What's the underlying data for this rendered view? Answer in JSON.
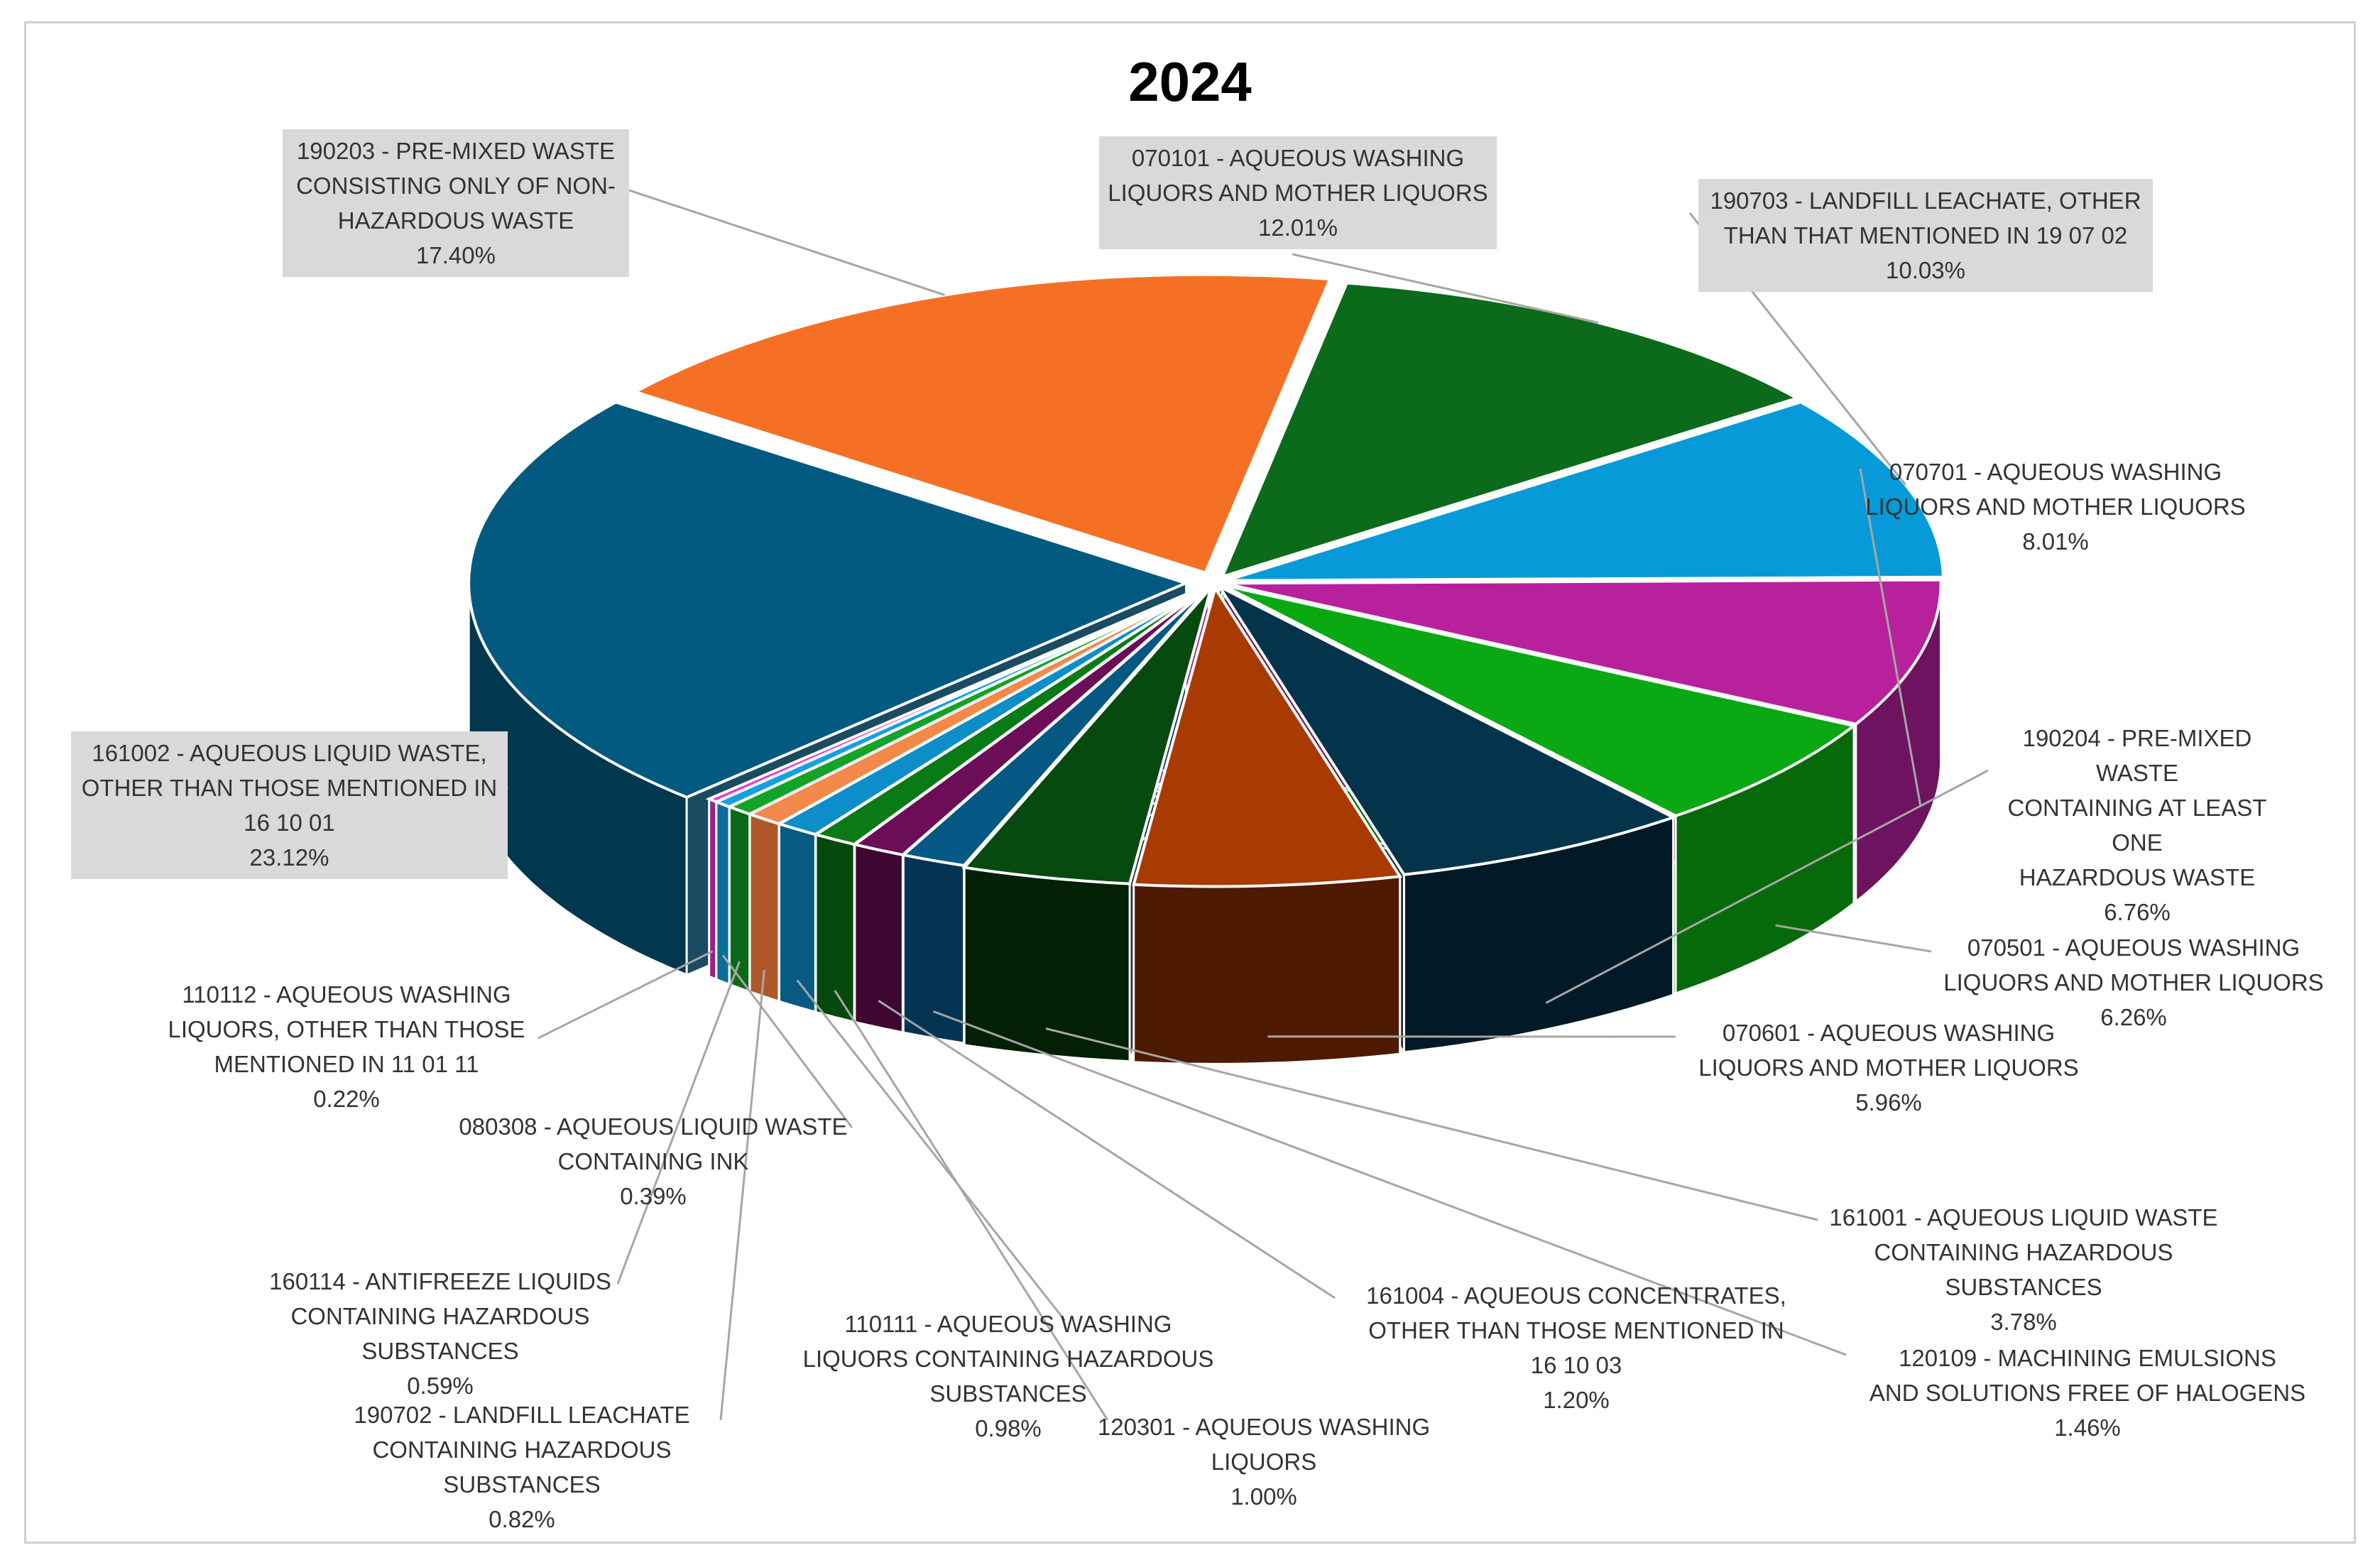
{
  "chart_data": {
    "type": "pie",
    "title": "2024",
    "variant": "3d-exploded",
    "slices": [
      {
        "label": "070101 - AQUEOUS WASHING LIQUORS AND MOTHER LIQUORS",
        "pct_text": "12.01%",
        "value": 12.01,
        "color": "#0b6b1a",
        "side_color": "#063a0e"
      },
      {
        "label": "190703 - LANDFILL LEACHATE, OTHER THAN THAT MENTIONED IN 19 07 02",
        "pct_text": "10.03%",
        "value": 10.03,
        "color": "#069bd8",
        "side_color": "#045f85"
      },
      {
        "label": "070701 - AQUEOUS WASHING LIQUORS AND MOTHER LIQUORS",
        "pct_text": "8.01%",
        "value": 8.01,
        "color": "#b8219c",
        "side_color": "#6e1360"
      },
      {
        "label": "070501 - AQUEOUS WASHING LIQUORS AND MOTHER LIQUORS",
        "pct_text": "6.26%",
        "value": 6.26,
        "color": "#0aa812",
        "side_color": "#066a0b"
      },
      {
        "label": "190204 - PRE-MIXED WASTE CONTAINING AT LEAST ONE HAZARDOUS WASTE",
        "pct_text": "6.76%",
        "value": 6.76,
        "color": "#04344b",
        "side_color": "#021a27"
      },
      {
        "label": "070601 - AQUEOUS WASHING LIQUORS AND MOTHER LIQUORS",
        "pct_text": "5.96%",
        "value": 5.96,
        "color": "#a83a02",
        "side_color": "#4e1a01"
      },
      {
        "label": "161001 - AQUEOUS LIQUID WASTE CONTAINING HAZARDOUS SUBSTANCES",
        "pct_text": "3.78%",
        "value": 3.78,
        "color": "#064a10",
        "side_color": "#031f06"
      },
      {
        "label": "120109 - MACHINING EMULSIONS AND SOLUTIONS FREE OF HALOGENS",
        "pct_text": "1.46%",
        "value": 1.46,
        "color": "#055883",
        "side_color": "#033552"
      },
      {
        "label": "161004 - AQUEOUS CONCENTRATES, OTHER THAN THOSE MENTIONED IN 16 10 03",
        "pct_text": "1.20%",
        "value": 1.2,
        "color": "#6b0d57",
        "side_color": "#3d0732"
      },
      {
        "label": "120301 - AQUEOUS WASHING LIQUORS",
        "pct_text": "1.00%",
        "value": 1.0,
        "color": "#0a7a17",
        "side_color": "#054a0c"
      },
      {
        "label": "110111 - AQUEOUS WASHING LIQUORS CONTAINING HAZARDOUS SUBSTANCES",
        "pct_text": "0.98%",
        "value": 0.98,
        "color": "#0d8ec9",
        "side_color": "#075a82"
      },
      {
        "label": "190702 - LANDFILL LEACHATE CONTAINING HAZARDOUS SUBSTANCES",
        "pct_text": "0.82%",
        "value": 0.82,
        "color": "#f2884a",
        "side_color": "#b0582a"
      },
      {
        "label": "160114 - ANTIFREEZE LIQUIDS CONTAINING HAZARDOUS SUBSTANCES",
        "pct_text": "0.59%",
        "value": 0.59,
        "color": "#12a328",
        "side_color": "#0a6a18"
      },
      {
        "label": "080308 - AQUEOUS LIQUID WASTE CONTAINING INK",
        "pct_text": "0.39%",
        "value": 0.39,
        "color": "#16a0e0",
        "side_color": "#0c6c99"
      },
      {
        "label": "110112 - AQUEOUS WASHING LIQUORS, OTHER THAN THOSE MENTIONED IN 11 01 11",
        "pct_text": "0.22%",
        "value": 0.22,
        "color": "#e23ac8",
        "side_color": "#9a2089"
      },
      {
        "label": "161002 - AQUEOUS LIQUID WASTE, OTHER THAN THOSE MENTIONED IN 16 10 01",
        "pct_text": "23.12%",
        "value": 23.12,
        "color": "#035a80",
        "side_color": "#02384f"
      },
      {
        "label": "190203 - PRE-MIXED WASTE CONSISTING ONLY OF NON-HAZARDOUS WASTE",
        "pct_text": "17.40%",
        "value": 17.4,
        "color": "#f57025",
        "side_color": "#7a3000"
      }
    ]
  },
  "labels": [
    {
      "code_text": "070101 - AQUEOUS WASHING\nLIQUORS AND MOTHER LIQUORS",
      "pct": "12.01%"
    },
    {
      "code_text": "190703 - LANDFILL LEACHATE, OTHER\nTHAN THAT MENTIONED IN 19 07 02",
      "pct": "10.03%"
    },
    {
      "code_text": "070701 - AQUEOUS WASHING\nLIQUORS AND MOTHER LIQUORS",
      "pct": "8.01%"
    },
    {
      "code_text": "070501 - AQUEOUS WASHING\nLIQUORS AND MOTHER LIQUORS",
      "pct": "6.26%"
    },
    {
      "code_text": "190204 - PRE-MIXED WASTE\nCONTAINING AT LEAST ONE\nHAZARDOUS WASTE",
      "pct": "6.76%"
    },
    {
      "code_text": "070601 - AQUEOUS WASHING\nLIQUORS AND MOTHER LIQUORS",
      "pct": "5.96%"
    },
    {
      "code_text": "161001 - AQUEOUS LIQUID WASTE\nCONTAINING HAZARDOUS\nSUBSTANCES",
      "pct": "3.78%"
    },
    {
      "code_text": "120109 - MACHINING EMULSIONS\nAND SOLUTIONS FREE OF HALOGENS",
      "pct": "1.46%"
    },
    {
      "code_text": "161004 - AQUEOUS CONCENTRATES,\nOTHER THAN THOSE MENTIONED IN\n16 10 03",
      "pct": "1.20%"
    },
    {
      "code_text": "120301 - AQUEOUS WASHING\nLIQUORS",
      "pct": "1.00%"
    },
    {
      "code_text": "110111 - AQUEOUS WASHING\nLIQUORS CONTAINING HAZARDOUS\nSUBSTANCES",
      "pct": "0.98%"
    },
    {
      "code_text": "190702 - LANDFILL LEACHATE\nCONTAINING HAZARDOUS\nSUBSTANCES",
      "pct": "0.82%"
    },
    {
      "code_text": "160114 - ANTIFREEZE LIQUIDS\nCONTAINING HAZARDOUS\nSUBSTANCES",
      "pct": "0.59%"
    },
    {
      "code_text": "080308 - AQUEOUS LIQUID WASTE\nCONTAINING INK",
      "pct": "0.39%"
    },
    {
      "code_text": "110112 - AQUEOUS WASHING\nLIQUORS, OTHER THAN THOSE\nMENTIONED IN 11 01 11",
      "pct": "0.22%"
    },
    {
      "code_text": "161002 - AQUEOUS LIQUID WASTE,\nOTHER THAN THOSE MENTIONED IN\n16 10 01",
      "pct": "23.12%"
    },
    {
      "code_text": "190203 - PRE-MIXED WASTE\nCONSISTING ONLY OF NON-\nHAZARDOUS WASTE",
      "pct": "17.40%"
    }
  ]
}
